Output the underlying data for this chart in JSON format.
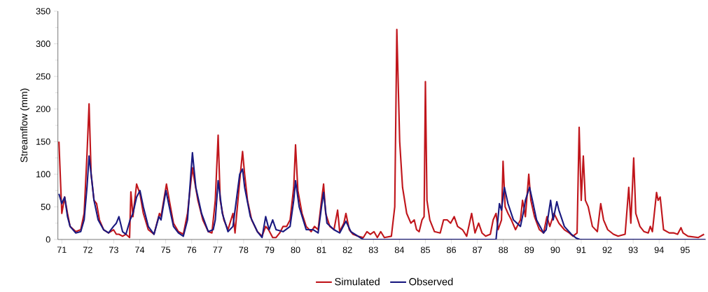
{
  "chart_data": {
    "type": "line",
    "ylabel": "Streamflow (mm)",
    "xlim": [
      70.85,
      95.8
    ],
    "ylim": [
      0,
      350
    ],
    "xticks": [
      71,
      72,
      73,
      74,
      75,
      76,
      77,
      78,
      79,
      80,
      81,
      82,
      83,
      84,
      85,
      86,
      87,
      88,
      89,
      90,
      91,
      92,
      93,
      94,
      95
    ],
    "yticks": [
      0,
      50,
      100,
      150,
      200,
      250,
      300,
      350
    ],
    "grid": false,
    "legend": "bottom",
    "marker": "none",
    "line_style": "solid",
    "series": [
      {
        "name": "Simulated",
        "color": "#c0161c",
        "x": [
          70.89,
          71.0,
          71.11,
          71.22,
          71.32,
          71.54,
          71.73,
          71.86,
          71.97,
          72.05,
          72.13,
          72.24,
          72.34,
          72.45,
          72.61,
          72.8,
          72.99,
          73.1,
          73.2,
          73.34,
          73.47,
          73.61,
          73.66,
          73.74,
          73.88,
          74.01,
          74.14,
          74.33,
          74.55,
          74.76,
          74.82,
          75.03,
          75.14,
          75.3,
          75.49,
          75.68,
          75.84,
          76.03,
          76.11,
          76.24,
          76.43,
          76.64,
          76.78,
          76.91,
          77.02,
          77.1,
          77.24,
          77.4,
          77.59,
          77.67,
          77.85,
          77.96,
          78.04,
          78.15,
          78.31,
          78.53,
          78.71,
          78.85,
          78.96,
          79.12,
          79.25,
          79.39,
          79.52,
          79.66,
          79.79,
          79.93,
          80.0,
          80.09,
          80.25,
          80.41,
          80.6,
          80.73,
          80.87,
          81.0,
          81.08,
          81.16,
          81.32,
          81.48,
          81.62,
          81.7,
          81.86,
          81.94,
          82.07,
          82.21,
          82.4,
          82.61,
          82.75,
          82.88,
          83.02,
          83.15,
          83.28,
          83.42,
          83.69,
          83.82,
          83.9,
          84.01,
          84.12,
          84.28,
          84.44,
          84.57,
          84.66,
          84.76,
          84.87,
          84.95,
          85.0,
          85.06,
          85.17,
          85.35,
          85.57,
          85.7,
          85.84,
          85.97,
          86.11,
          86.24,
          86.43,
          86.59,
          86.78,
          86.91,
          87.05,
          87.18,
          87.32,
          87.5,
          87.61,
          87.72,
          87.8,
          87.93,
          87.99,
          88.07,
          88.18,
          88.31,
          88.47,
          88.66,
          88.74,
          88.85,
          88.98,
          89.06,
          89.2,
          89.39,
          89.55,
          89.68,
          89.79,
          89.95,
          90.14,
          90.35,
          90.54,
          90.68,
          90.84,
          90.92,
          91.0,
          91.08,
          91.16,
          91.27,
          91.43,
          91.62,
          91.75,
          91.86,
          92.02,
          92.24,
          92.42,
          92.69,
          92.83,
          92.91,
          93.02,
          93.1,
          93.26,
          93.42,
          93.58,
          93.66,
          93.74,
          93.9,
          93.96,
          94.04,
          94.17,
          94.39,
          94.57,
          94.71,
          94.84,
          94.92,
          95.11,
          95.51,
          95.73
        ],
        "values": [
          150,
          40,
          65,
          40,
          20,
          12,
          15,
          40,
          130,
          208,
          100,
          60,
          55,
          30,
          15,
          10,
          15,
          8,
          8,
          5,
          8,
          3,
          73,
          35,
          85,
          70,
          40,
          15,
          8,
          40,
          35,
          85,
          60,
          25,
          12,
          8,
          40,
          110,
          90,
          60,
          30,
          12,
          10,
          60,
          160,
          60,
          30,
          15,
          40,
          10,
          90,
          135,
          100,
          60,
          30,
          12,
          5,
          20,
          15,
          3,
          3,
          10,
          20,
          20,
          30,
          80,
          145,
          75,
          40,
          20,
          12,
          20,
          15,
          60,
          85,
          40,
          20,
          15,
          45,
          12,
          25,
          40,
          15,
          8,
          5,
          3,
          12,
          8,
          12,
          3,
          12,
          3,
          5,
          50,
          322,
          150,
          80,
          40,
          25,
          30,
          15,
          12,
          30,
          35,
          242,
          60,
          30,
          12,
          10,
          30,
          30,
          25,
          35,
          20,
          15,
          5,
          40,
          10,
          25,
          10,
          5,
          8,
          30,
          40,
          15,
          30,
          120,
          50,
          40,
          30,
          15,
          30,
          60,
          35,
          100,
          60,
          35,
          15,
          10,
          35,
          20,
          40,
          25,
          15,
          10,
          5,
          10,
          172,
          60,
          128,
          60,
          50,
          20,
          12,
          55,
          30,
          15,
          8,
          5,
          8,
          80,
          25,
          125,
          40,
          20,
          12,
          10,
          20,
          12,
          72,
          60,
          65,
          15,
          10,
          10,
          8,
          18,
          10,
          5,
          3,
          8
        ]
      },
      {
        "name": "Observed",
        "color": "#1a1a80",
        "x": [
          70.89,
          71.0,
          71.11,
          71.22,
          71.32,
          71.54,
          71.73,
          71.86,
          71.97,
          72.05,
          72.13,
          72.24,
          72.4,
          72.61,
          72.8,
          72.99,
          73.1,
          73.2,
          73.34,
          73.47,
          73.63,
          73.74,
          73.88,
          74.01,
          74.14,
          74.33,
          74.55,
          74.74,
          74.82,
          75.01,
          75.14,
          75.3,
          75.49,
          75.68,
          75.84,
          76.03,
          76.16,
          76.38,
          76.64,
          76.83,
          76.91,
          77.02,
          77.18,
          77.4,
          77.59,
          77.85,
          77.96,
          78.04,
          78.26,
          78.53,
          78.71,
          78.85,
          78.98,
          79.12,
          79.25,
          79.52,
          79.79,
          79.93,
          80.0,
          80.14,
          80.41,
          80.68,
          80.87,
          81.0,
          81.08,
          81.21,
          81.48,
          81.7,
          81.94,
          82.13,
          82.48,
          82.61,
          87.59,
          87.72,
          87.85,
          87.93,
          88.04,
          88.18,
          88.39,
          88.66,
          88.79,
          88.85,
          89.01,
          89.12,
          89.28,
          89.55,
          89.65,
          89.82,
          89.92,
          90.06,
          90.14,
          90.35,
          90.62,
          90.81,
          90.95,
          95.78
        ],
        "values": [
          70,
          55,
          65,
          35,
          20,
          10,
          12,
          30,
          80,
          128,
          100,
          60,
          30,
          15,
          10,
          20,
          25,
          35,
          12,
          8,
          30,
          40,
          65,
          75,
          50,
          20,
          8,
          35,
          30,
          75,
          50,
          20,
          10,
          5,
          30,
          133,
          80,
          40,
          12,
          15,
          30,
          90,
          40,
          12,
          20,
          100,
          108,
          80,
          35,
          12,
          3,
          35,
          15,
          30,
          15,
          12,
          20,
          60,
          90,
          50,
          15,
          15,
          10,
          50,
          72,
          25,
          15,
          10,
          28,
          12,
          3,
          0,
          0,
          0,
          55,
          45,
          80,
          55,
          30,
          20,
          45,
          60,
          80,
          60,
          30,
          10,
          15,
          60,
          30,
          58,
          45,
          20,
          8,
          2,
          0,
          0
        ]
      }
    ]
  }
}
